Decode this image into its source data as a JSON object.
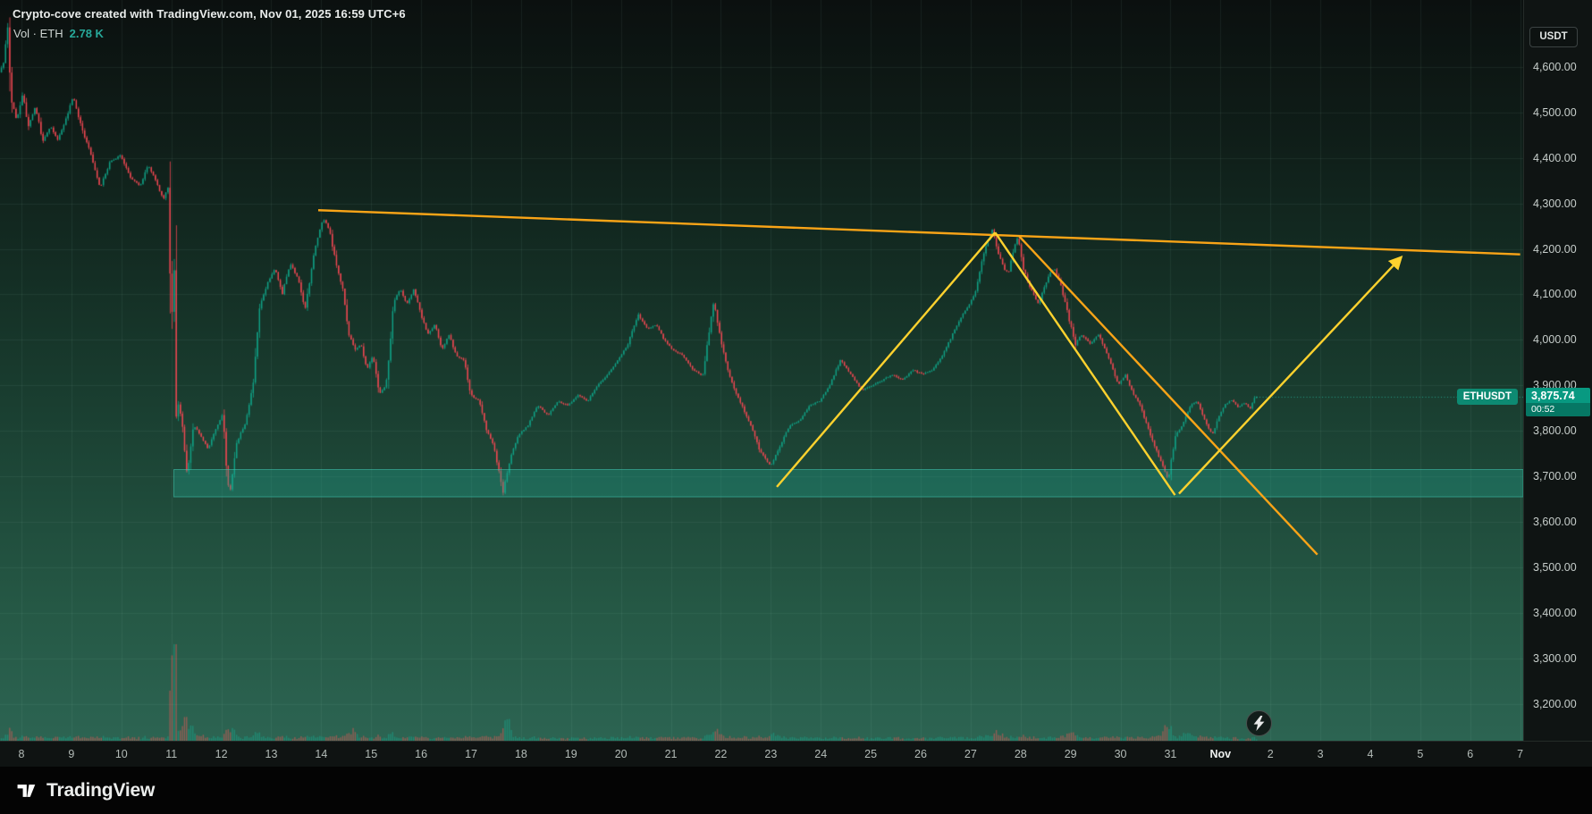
{
  "header": {
    "attribution": "Crypto-cove created with TradingView.com, Nov 01, 2025 16:59 UTC+6",
    "legend": {
      "label": "Vol · ETH",
      "value": "2.78 K"
    },
    "currency_button": "USDT"
  },
  "price_label": {
    "symbol": "ETHUSDT",
    "price": "3,875.74",
    "countdown": "00:52"
  },
  "footer": {
    "brand": "TradingView"
  },
  "price_scale": {
    "ticks": [
      {
        "value": 4600,
        "label": "4,600.00"
      },
      {
        "value": 4500,
        "label": "4,500.00"
      },
      {
        "value": 4400,
        "label": "4,400.00"
      },
      {
        "value": 4300,
        "label": "4,300.00"
      },
      {
        "value": 4200,
        "label": "4,200.00"
      },
      {
        "value": 4100,
        "label": "4,100.00"
      },
      {
        "value": 4000,
        "label": "4,000.00"
      },
      {
        "value": 3900,
        "label": "3,900.00"
      },
      {
        "value": 3800,
        "label": "3,800.00"
      },
      {
        "value": 3700,
        "label": "3,700.00"
      },
      {
        "value": 3600,
        "label": "3,600.00"
      },
      {
        "value": 3500,
        "label": "3,500.00"
      },
      {
        "value": 3400,
        "label": "3,400.00"
      },
      {
        "value": 3300,
        "label": "3,300.00"
      },
      {
        "value": 3200,
        "label": "3,200.00"
      }
    ]
  },
  "time_scale": {
    "ticks": [
      {
        "day": 8,
        "label": "8"
      },
      {
        "day": 9,
        "label": "9"
      },
      {
        "day": 10,
        "label": "10"
      },
      {
        "day": 11,
        "label": "11"
      },
      {
        "day": 12,
        "label": "12"
      },
      {
        "day": 13,
        "label": "13"
      },
      {
        "day": 14,
        "label": "14"
      },
      {
        "day": 15,
        "label": "15"
      },
      {
        "day": 16,
        "label": "16"
      },
      {
        "day": 17,
        "label": "17"
      },
      {
        "day": 18,
        "label": "18"
      },
      {
        "day": 19,
        "label": "19"
      },
      {
        "day": 20,
        "label": "20"
      },
      {
        "day": 21,
        "label": "21"
      },
      {
        "day": 22,
        "label": "22"
      },
      {
        "day": 23,
        "label": "23"
      },
      {
        "day": 24,
        "label": "24"
      },
      {
        "day": 25,
        "label": "25"
      },
      {
        "day": 26,
        "label": "26"
      },
      {
        "day": 27,
        "label": "27"
      },
      {
        "day": 28,
        "label": "28"
      },
      {
        "day": 29,
        "label": "29"
      },
      {
        "day": 30,
        "label": "30"
      },
      {
        "day": 31,
        "label": "31"
      },
      {
        "day": 32,
        "label": "Nov",
        "emphasis": true
      },
      {
        "day": 33,
        "label": "2"
      },
      {
        "day": 34,
        "label": "3"
      },
      {
        "day": 35,
        "label": "4"
      },
      {
        "day": 36,
        "label": "5"
      },
      {
        "day": 37,
        "label": "6"
      },
      {
        "day": 38,
        "label": "7"
      }
    ]
  },
  "colors": {
    "candle_up": "#10a085",
    "candle_down": "#ef4752",
    "volume_up": "rgba(26,166,140,0.55)",
    "volume_down": "rgba(239,90,88,0.5)",
    "grid": "rgba(180,225,205,0.08)",
    "price_line": "rgba(40,185,160,0.8)",
    "accent_teal": "#26a69a",
    "annotation_yellow": "#ffd22e",
    "annotation_orange": "#f9a417",
    "badge_green": "#089981"
  },
  "chart_data": {
    "type": "candlestick",
    "symbol": "ETHUSDT",
    "quote_currency": "USDT",
    "interval_minutes": 60,
    "last_price": 3875.74,
    "last_volume_label": "2.78 K",
    "x_axis": {
      "start_day": 7.57,
      "end_day": 38.06,
      "unit": "calendar day (Oct 8 = 8 ... Oct 31 = 31, Nov 1 = 32 ... Nov 7 = 38)"
    },
    "y_axis": {
      "min": 3119,
      "max": 4747,
      "grid_step": 100
    },
    "candles_start": 7.58,
    "candles_end": 32.72,
    "price_keyframes": [
      [
        7.57,
        4585
      ],
      [
        7.68,
        4615
      ],
      [
        7.74,
        4700
      ],
      [
        7.8,
        4545
      ],
      [
        7.92,
        4480
      ],
      [
        8.05,
        4540
      ],
      [
        8.16,
        4468
      ],
      [
        8.3,
        4512
      ],
      [
        8.45,
        4438
      ],
      [
        8.6,
        4470
      ],
      [
        8.75,
        4440
      ],
      [
        8.9,
        4482
      ],
      [
        9.06,
        4535
      ],
      [
        9.22,
        4468
      ],
      [
        9.4,
        4412
      ],
      [
        9.6,
        4335
      ],
      [
        9.8,
        4392
      ],
      [
        10.0,
        4405
      ],
      [
        10.2,
        4358
      ],
      [
        10.4,
        4338
      ],
      [
        10.56,
        4385
      ],
      [
        10.7,
        4352
      ],
      [
        10.86,
        4308
      ],
      [
        10.98,
        4342
      ],
      [
        11.02,
        3795
      ],
      [
        11.06,
        4362
      ],
      [
        11.11,
        3878
      ],
      [
        11.22,
        3832
      ],
      [
        11.34,
        3702
      ],
      [
        11.46,
        3815
      ],
      [
        11.6,
        3792
      ],
      [
        11.76,
        3760
      ],
      [
        11.9,
        3800
      ],
      [
        12.05,
        3836
      ],
      [
        12.18,
        3648
      ],
      [
        12.32,
        3772
      ],
      [
        12.5,
        3816
      ],
      [
        12.66,
        3905
      ],
      [
        12.8,
        4078
      ],
      [
        12.95,
        4125
      ],
      [
        13.1,
        4158
      ],
      [
        13.24,
        4100
      ],
      [
        13.4,
        4168
      ],
      [
        13.56,
        4135
      ],
      [
        13.7,
        4068
      ],
      [
        13.88,
        4190
      ],
      [
        14.06,
        4268
      ],
      [
        14.18,
        4244
      ],
      [
        14.32,
        4168
      ],
      [
        14.46,
        4110
      ],
      [
        14.58,
        4012
      ],
      [
        14.7,
        3978
      ],
      [
        14.82,
        3990
      ],
      [
        14.94,
        3936
      ],
      [
        15.06,
        3966
      ],
      [
        15.18,
        3878
      ],
      [
        15.32,
        3902
      ],
      [
        15.48,
        4088
      ],
      [
        15.6,
        4112
      ],
      [
        15.74,
        4078
      ],
      [
        15.88,
        4112
      ],
      [
        16.02,
        4056
      ],
      [
        16.16,
        4012
      ],
      [
        16.3,
        4034
      ],
      [
        16.44,
        3978
      ],
      [
        16.58,
        4012
      ],
      [
        16.72,
        3966
      ],
      [
        16.88,
        3955
      ],
      [
        17.02,
        3878
      ],
      [
        17.18,
        3866
      ],
      [
        17.34,
        3800
      ],
      [
        17.48,
        3766
      ],
      [
        17.66,
        3662
      ],
      [
        17.8,
        3735
      ],
      [
        17.96,
        3790
      ],
      [
        18.16,
        3812
      ],
      [
        18.36,
        3856
      ],
      [
        18.56,
        3834
      ],
      [
        18.76,
        3866
      ],
      [
        18.96,
        3856
      ],
      [
        19.16,
        3878
      ],
      [
        19.36,
        3866
      ],
      [
        19.56,
        3900
      ],
      [
        19.76,
        3924
      ],
      [
        19.96,
        3956
      ],
      [
        20.16,
        3990
      ],
      [
        20.36,
        4056
      ],
      [
        20.56,
        4024
      ],
      [
        20.72,
        4034
      ],
      [
        20.88,
        4002
      ],
      [
        21.06,
        3978
      ],
      [
        21.26,
        3966
      ],
      [
        21.46,
        3934
      ],
      [
        21.66,
        3922
      ],
      [
        21.88,
        4088
      ],
      [
        22.0,
        4012
      ],
      [
        22.14,
        3944
      ],
      [
        22.26,
        3900
      ],
      [
        22.44,
        3856
      ],
      [
        22.62,
        3812
      ],
      [
        22.8,
        3756
      ],
      [
        23.02,
        3722
      ],
      [
        23.2,
        3766
      ],
      [
        23.4,
        3812
      ],
      [
        23.6,
        3822
      ],
      [
        23.8,
        3856
      ],
      [
        24.0,
        3866
      ],
      [
        24.2,
        3900
      ],
      [
        24.42,
        3956
      ],
      [
        24.62,
        3924
      ],
      [
        24.84,
        3890
      ],
      [
        25.06,
        3900
      ],
      [
        25.26,
        3912
      ],
      [
        25.46,
        3924
      ],
      [
        25.66,
        3912
      ],
      [
        25.86,
        3934
      ],
      [
        26.06,
        3924
      ],
      [
        26.26,
        3934
      ],
      [
        26.46,
        3966
      ],
      [
        26.66,
        4012
      ],
      [
        26.86,
        4056
      ],
      [
        27.0,
        4078
      ],
      [
        27.14,
        4112
      ],
      [
        27.3,
        4200
      ],
      [
        27.46,
        4242
      ],
      [
        27.58,
        4190
      ],
      [
        27.68,
        4158
      ],
      [
        27.78,
        4146
      ],
      [
        27.88,
        4200
      ],
      [
        27.97,
        4226
      ],
      [
        28.08,
        4158
      ],
      [
        28.18,
        4124
      ],
      [
        28.28,
        4100
      ],
      [
        28.38,
        4078
      ],
      [
        28.48,
        4112
      ],
      [
        28.6,
        4146
      ],
      [
        28.7,
        4156
      ],
      [
        28.82,
        4124
      ],
      [
        28.92,
        4078
      ],
      [
        29.02,
        4034
      ],
      [
        29.12,
        3990
      ],
      [
        29.24,
        4012
      ],
      [
        29.42,
        3990
      ],
      [
        29.58,
        4012
      ],
      [
        29.72,
        3978
      ],
      [
        29.84,
        3944
      ],
      [
        29.98,
        3900
      ],
      [
        30.12,
        3924
      ],
      [
        30.24,
        3890
      ],
      [
        30.42,
        3856
      ],
      [
        30.62,
        3790
      ],
      [
        30.82,
        3734
      ],
      [
        30.98,
        3692
      ],
      [
        31.12,
        3790
      ],
      [
        31.26,
        3812
      ],
      [
        31.42,
        3856
      ],
      [
        31.56,
        3866
      ],
      [
        31.66,
        3834
      ],
      [
        31.76,
        3812
      ],
      [
        31.86,
        3790
      ],
      [
        31.96,
        3822
      ],
      [
        32.1,
        3856
      ],
      [
        32.24,
        3868
      ],
      [
        32.38,
        3852
      ],
      [
        32.52,
        3862
      ],
      [
        32.62,
        3848
      ],
      [
        32.72,
        3875.74
      ]
    ],
    "volume_spikes": [
      {
        "day": 11.03,
        "boost": 9,
        "sigma": 0.05
      },
      {
        "day": 11.3,
        "boost": 2.2,
        "sigma": 0.25
      },
      {
        "day": 12.18,
        "boost": 1.5,
        "sigma": 0.08
      },
      {
        "day": 14.66,
        "boost": 2.2,
        "sigma": 0.1
      },
      {
        "day": 17.7,
        "boost": 6,
        "sigma": 0.07
      },
      {
        "day": 21.9,
        "boost": 2.2,
        "sigma": 0.07
      },
      {
        "day": 23.02,
        "boost": 2.0,
        "sigma": 0.1
      },
      {
        "day": 27.5,
        "boost": 1.2,
        "sigma": 0.15
      },
      {
        "day": 29.05,
        "boost": 0.8,
        "sigma": 0.2
      },
      {
        "day": 30.9,
        "boost": 4,
        "sigma": 0.1
      },
      {
        "day": 31.35,
        "boost": 1.5,
        "sigma": 0.15
      }
    ],
    "annotations": {
      "support_zone": {
        "day_from": 11.05,
        "day_to": 38.06,
        "price_top": 3715,
        "price_bottom": 3655,
        "fill": "rgba(34,171,148,0.32)",
        "stroke": "rgba(66,200,176,0.55)"
      },
      "lines": [
        {
          "name": "resistance-trendline",
          "from": [
            13.94,
            4285
          ],
          "to": [
            38.0,
            4188
          ],
          "color": "#f9a417",
          "width": 2.4
        },
        {
          "name": "pattern-up-leg",
          "from": [
            23.12,
            3677
          ],
          "to": [
            27.49,
            4236
          ],
          "color": "#ffd22e",
          "width": 2.4
        },
        {
          "name": "pattern-down-leg",
          "from": [
            27.49,
            4236
          ],
          "to": [
            31.09,
            3659
          ],
          "color": "#ffd22e",
          "width": 2.4
        },
        {
          "name": "falling-wedge-lower-line",
          "from": [
            27.97,
            4228
          ],
          "to": [
            33.94,
            3528
          ],
          "color": "#f9a417",
          "width": 2.4
        },
        {
          "name": "projection-arrow",
          "from": [
            31.17,
            3662
          ],
          "to": [
            35.62,
            4182
          ],
          "color": "#ffd22e",
          "width": 2.4,
          "arrow": true
        }
      ]
    }
  }
}
